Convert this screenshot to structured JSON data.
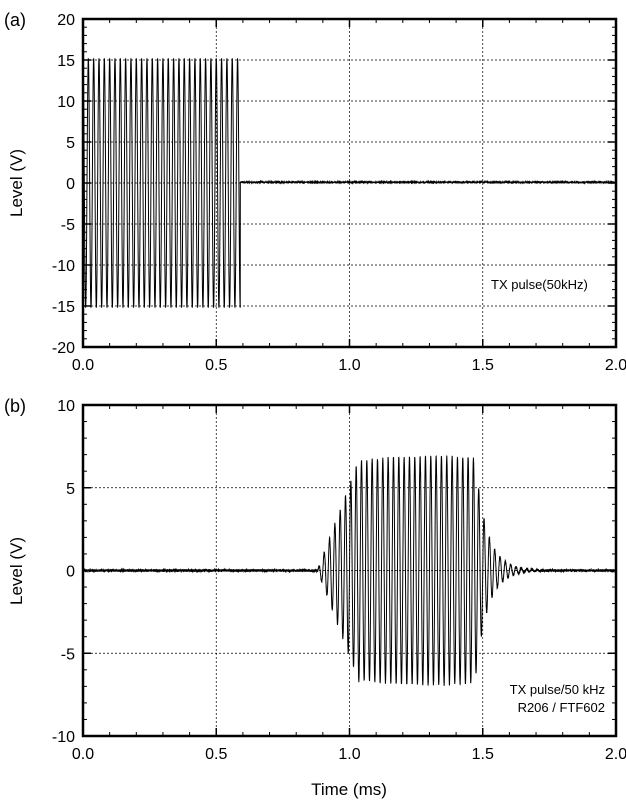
{
  "chart_data": [
    {
      "type": "line",
      "panel_label": "(a)",
      "title": "",
      "xlabel": "",
      "ylabel": "Level (V)",
      "xlim": [
        0.0,
        2.0
      ],
      "ylim": [
        -20,
        20
      ],
      "x_ticks": [
        "0.0",
        "0.5",
        "1.0",
        "1.5",
        "2.0"
      ],
      "y_ticks": [
        "20",
        "15",
        "10",
        "5",
        "0",
        "-5",
        "-10",
        "-15",
        "-20"
      ],
      "grid": true,
      "annotation": [
        "TX pulse(50kHz)"
      ],
      "series": [
        {
          "signal": "sine burst",
          "frequency_khz": 50,
          "amplitude_v": 15.2,
          "start_ms": 0.0,
          "end_ms": 0.59,
          "level_after_ms": 0.1
        }
      ]
    },
    {
      "type": "line",
      "panel_label": "(b)",
      "title": "",
      "xlabel": "Time (ms)",
      "ylabel": "Level (V)",
      "xlim": [
        0.0,
        2.0
      ],
      "ylim": [
        -10,
        10
      ],
      "x_ticks": [
        "0.0",
        "0.5",
        "1.0",
        "1.5",
        "2.0"
      ],
      "y_ticks": [
        "10",
        "5",
        "0",
        "-5",
        "-10"
      ],
      "grid": true,
      "annotation": [
        "TX pulse/50 kHz",
        "R206 / FTF602"
      ],
      "series": [
        {
          "signal": "received burst",
          "frequency_khz": 50,
          "noise_level_v": 0.08,
          "onset_ms": 0.88,
          "rise_end_ms": 1.04,
          "peak_amplitude_v": 6.9,
          "burst_end_ms": 1.47,
          "ringdown_until_ms": 1.72
        }
      ]
    }
  ]
}
